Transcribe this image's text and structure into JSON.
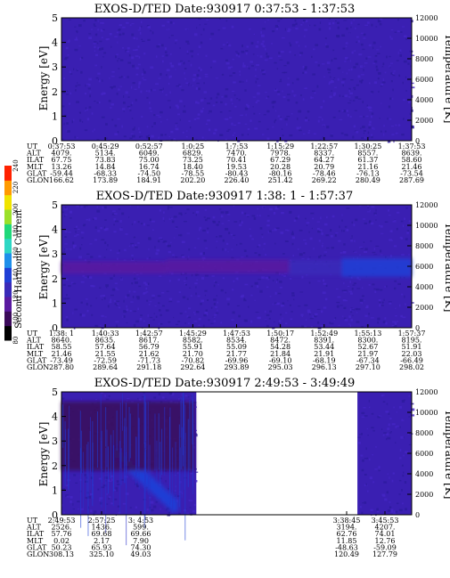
{
  "chart_data": [
    {
      "type": "heatmap",
      "title": "EXOS-D/TED   Date:930917   0:37:53 - 1:37:53",
      "ylabel": "Energy [eV]",
      "ylabel_right": "Temperature [K]",
      "ylim": [
        0,
        5
      ],
      "ylim_right": [
        0,
        12000
      ],
      "yticks": [
        "0",
        "1",
        "2",
        "3",
        "4",
        "5"
      ],
      "yticks_right": [
        "0",
        "2000",
        "4000",
        "6000",
        "8000",
        "10000",
        "12000"
      ],
      "data_gaps": [],
      "features": [],
      "orbit": {
        "labels": [
          "UT",
          "ALT",
          "ILAT",
          "MLT",
          "GLAT",
          "GLON"
        ],
        "columns": [
          [
            "0:37:53",
            "4079.",
            "67.75",
            "13.26",
            "-59.44",
            "166.62"
          ],
          [
            "0:45:29",
            "5134.",
            "73.83",
            "14.84",
            "-68.33",
            "173.89"
          ],
          [
            "0:52:57",
            "6049.",
            "75.00",
            "16.74",
            "-74.50",
            "184.91"
          ],
          [
            "1:0:25",
            "6829.",
            "73.25",
            "18.40",
            "-78.55",
            "202.20"
          ],
          [
            "1:7:53",
            "7470.",
            "70.41",
            "19.53",
            "-80.43",
            "226.40"
          ],
          [
            "1:15:29",
            "7978.",
            "67.29",
            "20.28",
            "-80.16",
            "251.42"
          ],
          [
            "1:22:57",
            "8337.",
            "64.27",
            "20.79",
            "-78.46",
            "269.22"
          ],
          [
            "1:30:25",
            "8557.",
            "61.37",
            "21.16",
            "-76.13",
            "280.49"
          ],
          [
            "1:37:53",
            "8639.",
            "58.60",
            "21.46",
            "-73.54",
            "287.69"
          ]
        ]
      }
    },
    {
      "type": "heatmap",
      "title": "EXOS-D/TED   Date:930917   1:38: 1 - 1:57:37",
      "ylabel": "Energy [eV]",
      "ylabel_right": "Temperature [K]",
      "ylim": [
        0,
        5
      ],
      "ylim_right": [
        0,
        12000
      ],
      "yticks": [
        "0",
        "1",
        "2",
        "3",
        "4",
        "5"
      ],
      "yticks_right": [
        "0",
        "2000",
        "4000",
        "6000",
        "8000",
        "10000",
        "12000"
      ],
      "data_gaps": [],
      "features": [
        {
          "kind": "band",
          "x_start": 0.0,
          "x_end": 0.3,
          "y_center": 2.45,
          "width": 0.5,
          "level": 1.9
        },
        {
          "kind": "band",
          "x_start": 0.3,
          "x_end": 0.65,
          "y_center": 2.5,
          "width": 0.55,
          "level": 2.3
        },
        {
          "kind": "band",
          "x_start": 0.65,
          "x_end": 0.8,
          "y_center": 2.45,
          "width": 0.6,
          "level": 2.5
        },
        {
          "kind": "band",
          "x_start": 0.8,
          "x_end": 1.0,
          "y_center": 2.45,
          "width": 0.75,
          "level": 3.5
        }
      ],
      "orbit": {
        "labels": [
          "UT",
          "ALT",
          "ILAT",
          "MLT",
          "GLAT",
          "GLON"
        ],
        "columns": [
          [
            "1:38: 1",
            "8640.",
            "58.55",
            "21.46",
            "-73.49",
            "287.80"
          ],
          [
            "1:40:33",
            "8635.",
            "57.64",
            "21.55",
            "-72.59",
            "289.64"
          ],
          [
            "1:42:57",
            "8617.",
            "56.79",
            "21.62",
            "-71.73",
            "291.18"
          ],
          [
            "1:45:29",
            "8582.",
            "55.91",
            "21.70",
            "-70.82",
            "292.64"
          ],
          [
            "1:47:53",
            "8534.",
            "55.09",
            "21.77",
            "-69.96",
            "293.89"
          ],
          [
            "1:50:17",
            "8472.",
            "54.28",
            "21.84",
            "-69.10",
            "295.03"
          ],
          [
            "1:52:49",
            "8391.",
            "53.44",
            "21.91",
            "-68.19",
            "296.13"
          ],
          [
            "1:55:13",
            "8300.",
            "52.67",
            "21.97",
            "-67.34",
            "297.10"
          ],
          [
            "1:57:37",
            "8195.",
            "51.91",
            "22.03",
            "-66.49",
            "298.02"
          ]
        ]
      }
    },
    {
      "type": "heatmap",
      "title": "EXOS-D/TED   Date:930917   2:49:53 - 3:49:49",
      "ylabel": "Energy [eV]",
      "ylabel_right": "Temperature [K]",
      "ylim": [
        0,
        5
      ],
      "ylim_right": [
        0,
        12000
      ],
      "yticks": [
        "0",
        "1",
        "2",
        "3",
        "4",
        "5"
      ],
      "yticks_right": [
        "0",
        "2000",
        "4000",
        "6000",
        "8000",
        "10000",
        "12000"
      ],
      "data_gaps": [
        [
          0.385,
          0.845
        ]
      ],
      "features": [
        {
          "kind": "diagonal",
          "x_start": 0.15,
          "x_end": 0.32,
          "y_start": 2.6,
          "y_end": 0.4,
          "width": 0.55,
          "level": 3.8
        },
        {
          "kind": "band",
          "x_start": 0.0,
          "x_end": 0.38,
          "y_center": 3.2,
          "width": 2.8,
          "level": 1.3
        }
      ],
      "orbit": {
        "labels": [
          "UT",
          "ALT",
          "ILAT",
          "MLT",
          "GLAT",
          "GLON"
        ],
        "columns": [
          [
            "2:49:53",
            "2526.",
            "57.76",
            "0.02",
            "50.23",
            "308.13"
          ],
          [
            "2:57:25",
            "1436.",
            "69.68",
            "2.17",
            "65.93",
            "325.10"
          ],
          [
            "3: 4:53",
            "599.",
            "69.66",
            "7.90",
            "74.30",
            "49.03"
          ],
          [
            "3:38:45",
            "3194.",
            "62.76",
            "11.85",
            "-48.63",
            "120.49"
          ],
          [
            "3:45:53",
            "4207.",
            "74.01",
            "12.76",
            "-59.09",
            "127.79"
          ]
        ]
      }
    }
  ],
  "colorbar": {
    "label": "Second Harmonic Current",
    "ticks": [
      "80",
      "100",
      "120",
      "140",
      "160",
      "180",
      "200",
      "220",
      "240"
    ],
    "colors": [
      "#000000",
      "#3b0a5a",
      "#5a1aa0",
      "#3a2ab8",
      "#1f3fd6",
      "#1e8fea",
      "#2ed7c4",
      "#20d87a",
      "#9be02a",
      "#f0e400",
      "#ff9a00",
      "#ff2200"
    ]
  }
}
